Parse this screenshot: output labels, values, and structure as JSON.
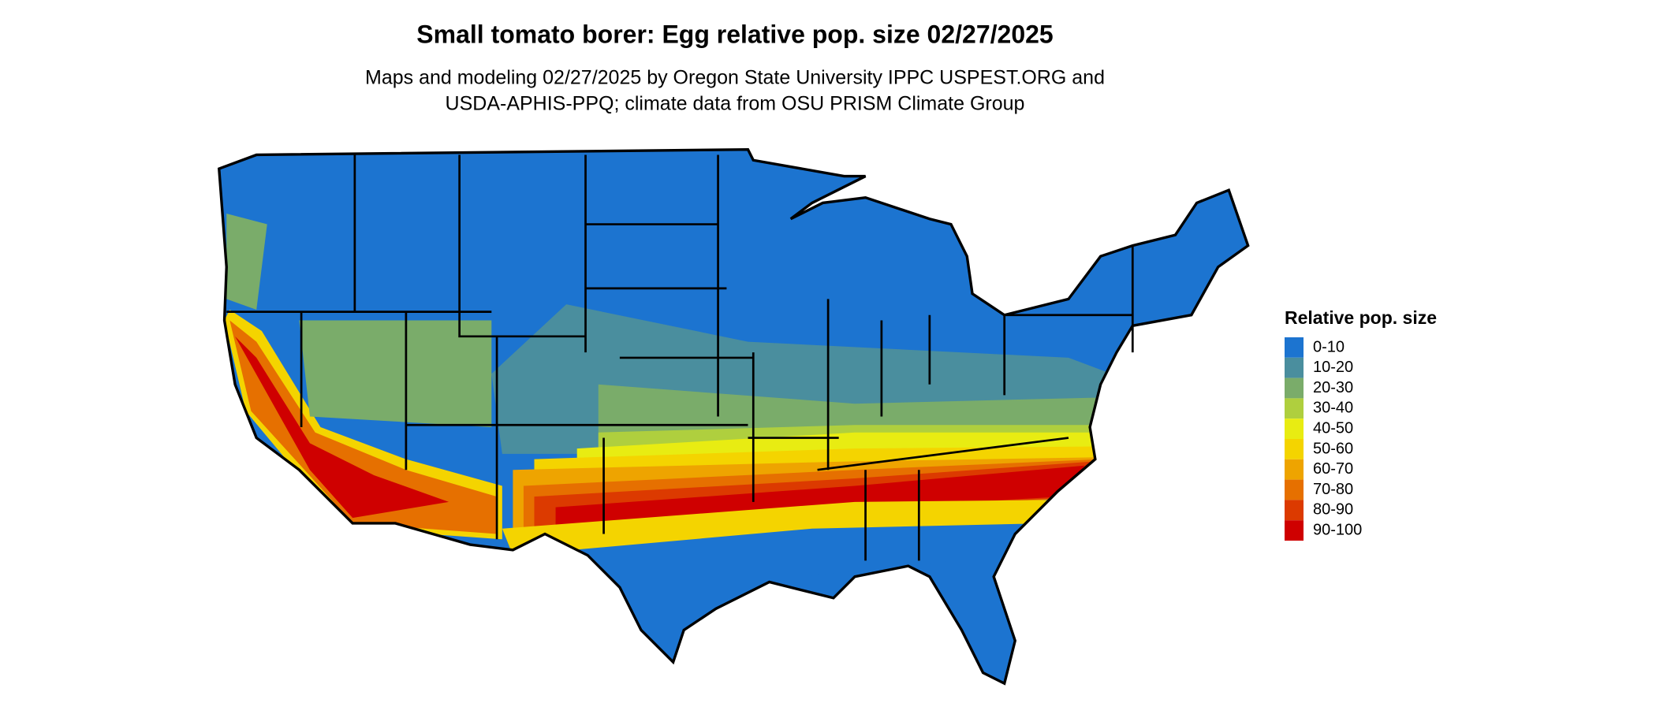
{
  "title": "Small tomato borer: Egg relative pop. size 02/27/2025",
  "subtitle": [
    "Maps and modeling 02/27/2025 by Oregon State University IPPC USPEST.ORG and",
    "USDA-APHIS-PPQ; climate data from OSU PRISM Climate Group"
  ],
  "legend": {
    "title": "Relative pop. size",
    "items": [
      {
        "label": "0-10",
        "color": "#1c74d0"
      },
      {
        "label": "10-20",
        "color": "#4a8e9e"
      },
      {
        "label": "20-30",
        "color": "#7aac6a"
      },
      {
        "label": "30-40",
        "color": "#afcf3e"
      },
      {
        "label": "40-50",
        "color": "#e8ec12"
      },
      {
        "label": "50-60",
        "color": "#f4d400"
      },
      {
        "label": "60-70",
        "color": "#eea400"
      },
      {
        "label": "70-80",
        "color": "#e67000"
      },
      {
        "label": "80-90",
        "color": "#dc3a00"
      },
      {
        "label": "90-100",
        "color": "#cf0000"
      }
    ]
  }
}
